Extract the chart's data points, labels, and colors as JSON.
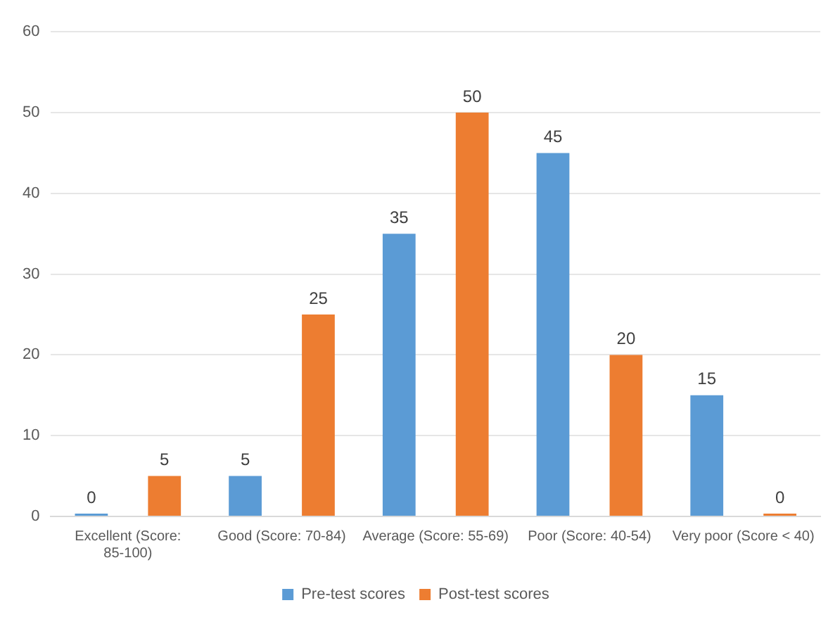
{
  "chart_data": {
    "type": "bar",
    "categories": [
      "Excellent (Score: 85-100)",
      "Good (Score: 70-84)",
      "Average (Score: 55-69)",
      "Poor (Score: 40-54)",
      "Very poor (Score < 40)"
    ],
    "series": [
      {
        "name": "Pre-test scores",
        "color": "#5b9bd5",
        "values": [
          0,
          5,
          35,
          45,
          15
        ]
      },
      {
        "name": "Post-test scores",
        "color": "#ed7d31",
        "values": [
          5,
          25,
          50,
          20,
          0
        ]
      }
    ],
    "ylim": [
      0,
      60
    ],
    "yticks": [
      0,
      10,
      20,
      30,
      40,
      50,
      60
    ],
    "grid": "y",
    "legend": "bottom",
    "data_labels": true
  }
}
